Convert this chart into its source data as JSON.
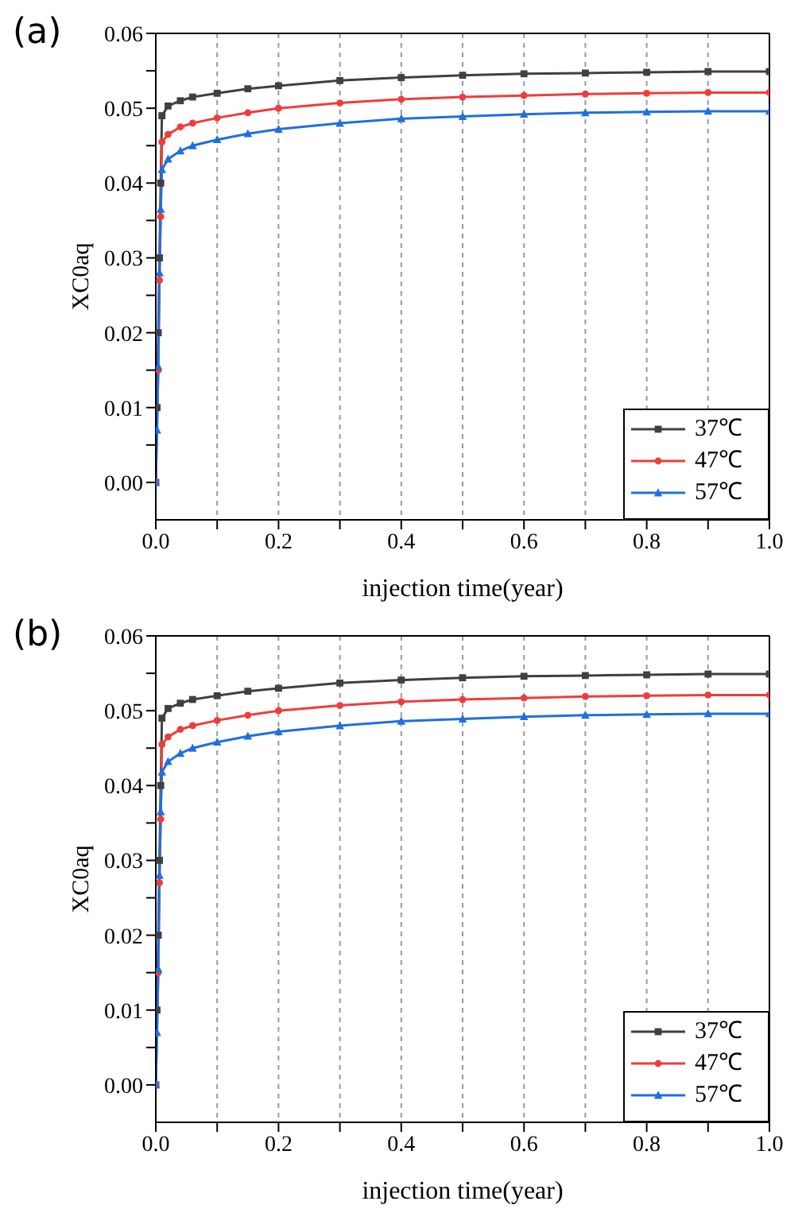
{
  "chart_data": [
    {
      "type": "line",
      "title": "(a)",
      "xlabel": "injection time(year)",
      "ylabel": "XC0aq",
      "x": [
        0,
        0.002,
        0.004,
        0.006,
        0.008,
        0.01,
        0.02,
        0.04,
        0.06,
        0.1,
        0.15,
        0.2,
        0.3,
        0.4,
        0.5,
        0.6,
        0.7,
        0.8,
        0.9,
        1.0
      ],
      "series": [
        {
          "name": "37℃",
          "color": "#404040",
          "marker": "square",
          "values": [
            0,
            0.01,
            0.02,
            0.03,
            0.04,
            0.049,
            0.0503,
            0.051,
            0.0515,
            0.052,
            0.0526,
            0.053,
            0.0537,
            0.0541,
            0.0544,
            0.0546,
            0.0547,
            0.0548,
            0.0549,
            0.0549
          ]
        },
        {
          "name": "47℃",
          "color": "#f03c3c",
          "marker": "circle",
          "values": [
            0,
            null,
            0.015,
            0.027,
            0.0355,
            0.0455,
            0.0465,
            0.0475,
            0.048,
            0.0487,
            0.0494,
            0.05,
            0.0507,
            0.0512,
            0.0515,
            0.0517,
            0.0519,
            0.052,
            0.0521,
            0.0521
          ]
        },
        {
          "name": "57℃",
          "color": "#1f6fe0",
          "marker": "triangle",
          "values": [
            0,
            0.007,
            0.0155,
            0.028,
            0.0365,
            0.0418,
            0.0432,
            0.0443,
            0.045,
            0.0458,
            0.0466,
            0.0472,
            0.048,
            0.0486,
            0.0489,
            0.0492,
            0.0494,
            0.0495,
            0.0496,
            0.0496
          ]
        }
      ],
      "xlim": [
        0,
        1
      ],
      "ylim": [
        -0.005,
        0.06
      ],
      "xticks": [
        {
          "value": 0,
          "label": "0.0"
        },
        {
          "value": 0.1,
          "label": null
        },
        {
          "value": 0.2,
          "label": "0.2"
        },
        {
          "value": 0.3,
          "label": null
        },
        {
          "value": 0.4,
          "label": "0.4"
        },
        {
          "value": 0.5,
          "label": null
        },
        {
          "value": 0.6,
          "label": "0.6"
        },
        {
          "value": 0.7,
          "label": null
        },
        {
          "value": 0.8,
          "label": "0.8"
        },
        {
          "value": 0.9,
          "label": null
        },
        {
          "value": 1,
          "label": "1.0"
        }
      ],
      "yticks": [
        {
          "value": 0,
          "label": "0.00"
        },
        {
          "value": 0.005,
          "label": null
        },
        {
          "value": 0.01,
          "label": "0.01"
        },
        {
          "value": 0.015,
          "label": null
        },
        {
          "value": 0.02,
          "label": "0.02"
        },
        {
          "value": 0.025,
          "label": null
        },
        {
          "value": 0.03,
          "label": "0.03"
        },
        {
          "value": 0.035,
          "label": null
        },
        {
          "value": 0.04,
          "label": "0.04"
        },
        {
          "value": 0.045,
          "label": null
        },
        {
          "value": 0.05,
          "label": "0.05"
        },
        {
          "value": 0.055,
          "label": null
        },
        {
          "value": 0.06,
          "label": "0.06"
        }
      ],
      "grid": "x",
      "legend": "bottom right"
    },
    {
      "type": "line",
      "title": "(b)",
      "xlabel": "injection time(year)",
      "ylabel": "XC0aq",
      "x": [
        0,
        0.002,
        0.004,
        0.006,
        0.008,
        0.01,
        0.02,
        0.04,
        0.06,
        0.1,
        0.15,
        0.2,
        0.3,
        0.4,
        0.5,
        0.6,
        0.7,
        0.8,
        0.9,
        1.0
      ],
      "series": [
        {
          "name": "37℃",
          "color": "#404040",
          "marker": "square",
          "values": [
            0,
            0.01,
            0.02,
            0.03,
            0.04,
            0.049,
            0.0503,
            0.051,
            0.0515,
            0.052,
            0.0526,
            0.053,
            0.0537,
            0.0541,
            0.0544,
            0.0546,
            0.0547,
            0.0548,
            0.0549,
            0.0549
          ]
        },
        {
          "name": "47℃",
          "color": "#f03c3c",
          "marker": "circle",
          "values": [
            0,
            null,
            0.015,
            0.027,
            0.0355,
            0.0455,
            0.0465,
            0.0475,
            0.048,
            0.0487,
            0.0494,
            0.05,
            0.0507,
            0.0512,
            0.0515,
            0.0517,
            0.0519,
            0.052,
            0.0521,
            0.0521
          ]
        },
        {
          "name": "57℃",
          "color": "#1f6fe0",
          "marker": "triangle",
          "values": [
            0,
            0.007,
            0.0155,
            0.028,
            0.0365,
            0.0418,
            0.0432,
            0.0443,
            0.045,
            0.0458,
            0.0466,
            0.0472,
            0.048,
            0.0486,
            0.0489,
            0.0492,
            0.0494,
            0.0495,
            0.0496,
            0.0496
          ]
        }
      ],
      "xlim": [
        0,
        1
      ],
      "ylim": [
        -0.005,
        0.06
      ],
      "xticks": [
        {
          "value": 0,
          "label": "0.0"
        },
        {
          "value": 0.1,
          "label": null
        },
        {
          "value": 0.2,
          "label": "0.2"
        },
        {
          "value": 0.3,
          "label": null
        },
        {
          "value": 0.4,
          "label": "0.4"
        },
        {
          "value": 0.5,
          "label": null
        },
        {
          "value": 0.6,
          "label": "0.6"
        },
        {
          "value": 0.7,
          "label": null
        },
        {
          "value": 0.8,
          "label": "0.8"
        },
        {
          "value": 0.9,
          "label": null
        },
        {
          "value": 1,
          "label": "1.0"
        }
      ],
      "yticks": [
        {
          "value": 0,
          "label": "0.00"
        },
        {
          "value": 0.005,
          "label": null
        },
        {
          "value": 0.01,
          "label": "0.01"
        },
        {
          "value": 0.015,
          "label": null
        },
        {
          "value": 0.02,
          "label": "0.02"
        },
        {
          "value": 0.025,
          "label": null
        },
        {
          "value": 0.03,
          "label": "0.03"
        },
        {
          "value": 0.035,
          "label": null
        },
        {
          "value": 0.04,
          "label": "0.04"
        },
        {
          "value": 0.045,
          "label": null
        },
        {
          "value": 0.05,
          "label": "0.05"
        },
        {
          "value": 0.055,
          "label": null
        },
        {
          "value": 0.06,
          "label": "0.06"
        }
      ],
      "grid": "x",
      "legend": "bottom right"
    }
  ]
}
